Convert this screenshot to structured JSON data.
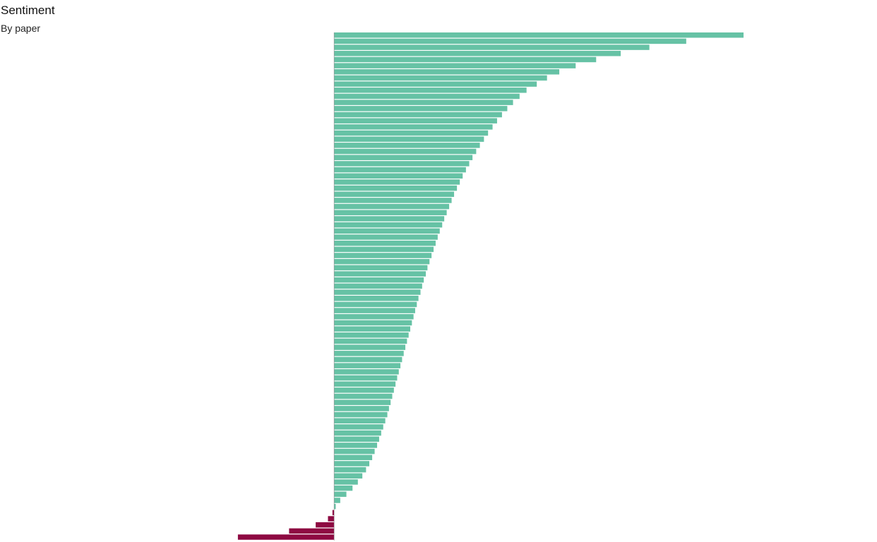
{
  "title": "Sentiment",
  "subtitle": "By paper",
  "colors": {
    "positive": "#66c2a5",
    "negative": "#8e0a42"
  },
  "chart_data": {
    "type": "bar",
    "orientation": "horizontal",
    "sorted": "descending",
    "title": "Sentiment",
    "subtitle": "By paper",
    "xlim": [
      -0.24,
      1.0
    ],
    "grid": false,
    "axes_visible": false,
    "values": [
      1.0,
      0.86,
      0.77,
      0.7,
      0.64,
      0.59,
      0.55,
      0.52,
      0.495,
      0.47,
      0.453,
      0.437,
      0.423,
      0.41,
      0.398,
      0.387,
      0.376,
      0.366,
      0.356,
      0.347,
      0.338,
      0.33,
      0.322,
      0.314,
      0.307,
      0.3,
      0.293,
      0.287,
      0.281,
      0.275,
      0.269,
      0.264,
      0.258,
      0.253,
      0.248,
      0.243,
      0.238,
      0.233,
      0.228,
      0.224,
      0.219,
      0.215,
      0.211,
      0.206,
      0.202,
      0.198,
      0.194,
      0.19,
      0.186,
      0.182,
      0.178,
      0.174,
      0.17,
      0.166,
      0.162,
      0.158,
      0.154,
      0.15,
      0.146,
      0.142,
      0.138,
      0.134,
      0.13,
      0.125,
      0.12,
      0.115,
      0.11,
      0.105,
      0.099,
      0.093,
      0.086,
      0.078,
      0.069,
      0.058,
      0.045,
      0.03,
      0.015,
      0.004,
      -0.004,
      -0.015,
      -0.045,
      -0.11,
      -0.235
    ]
  }
}
